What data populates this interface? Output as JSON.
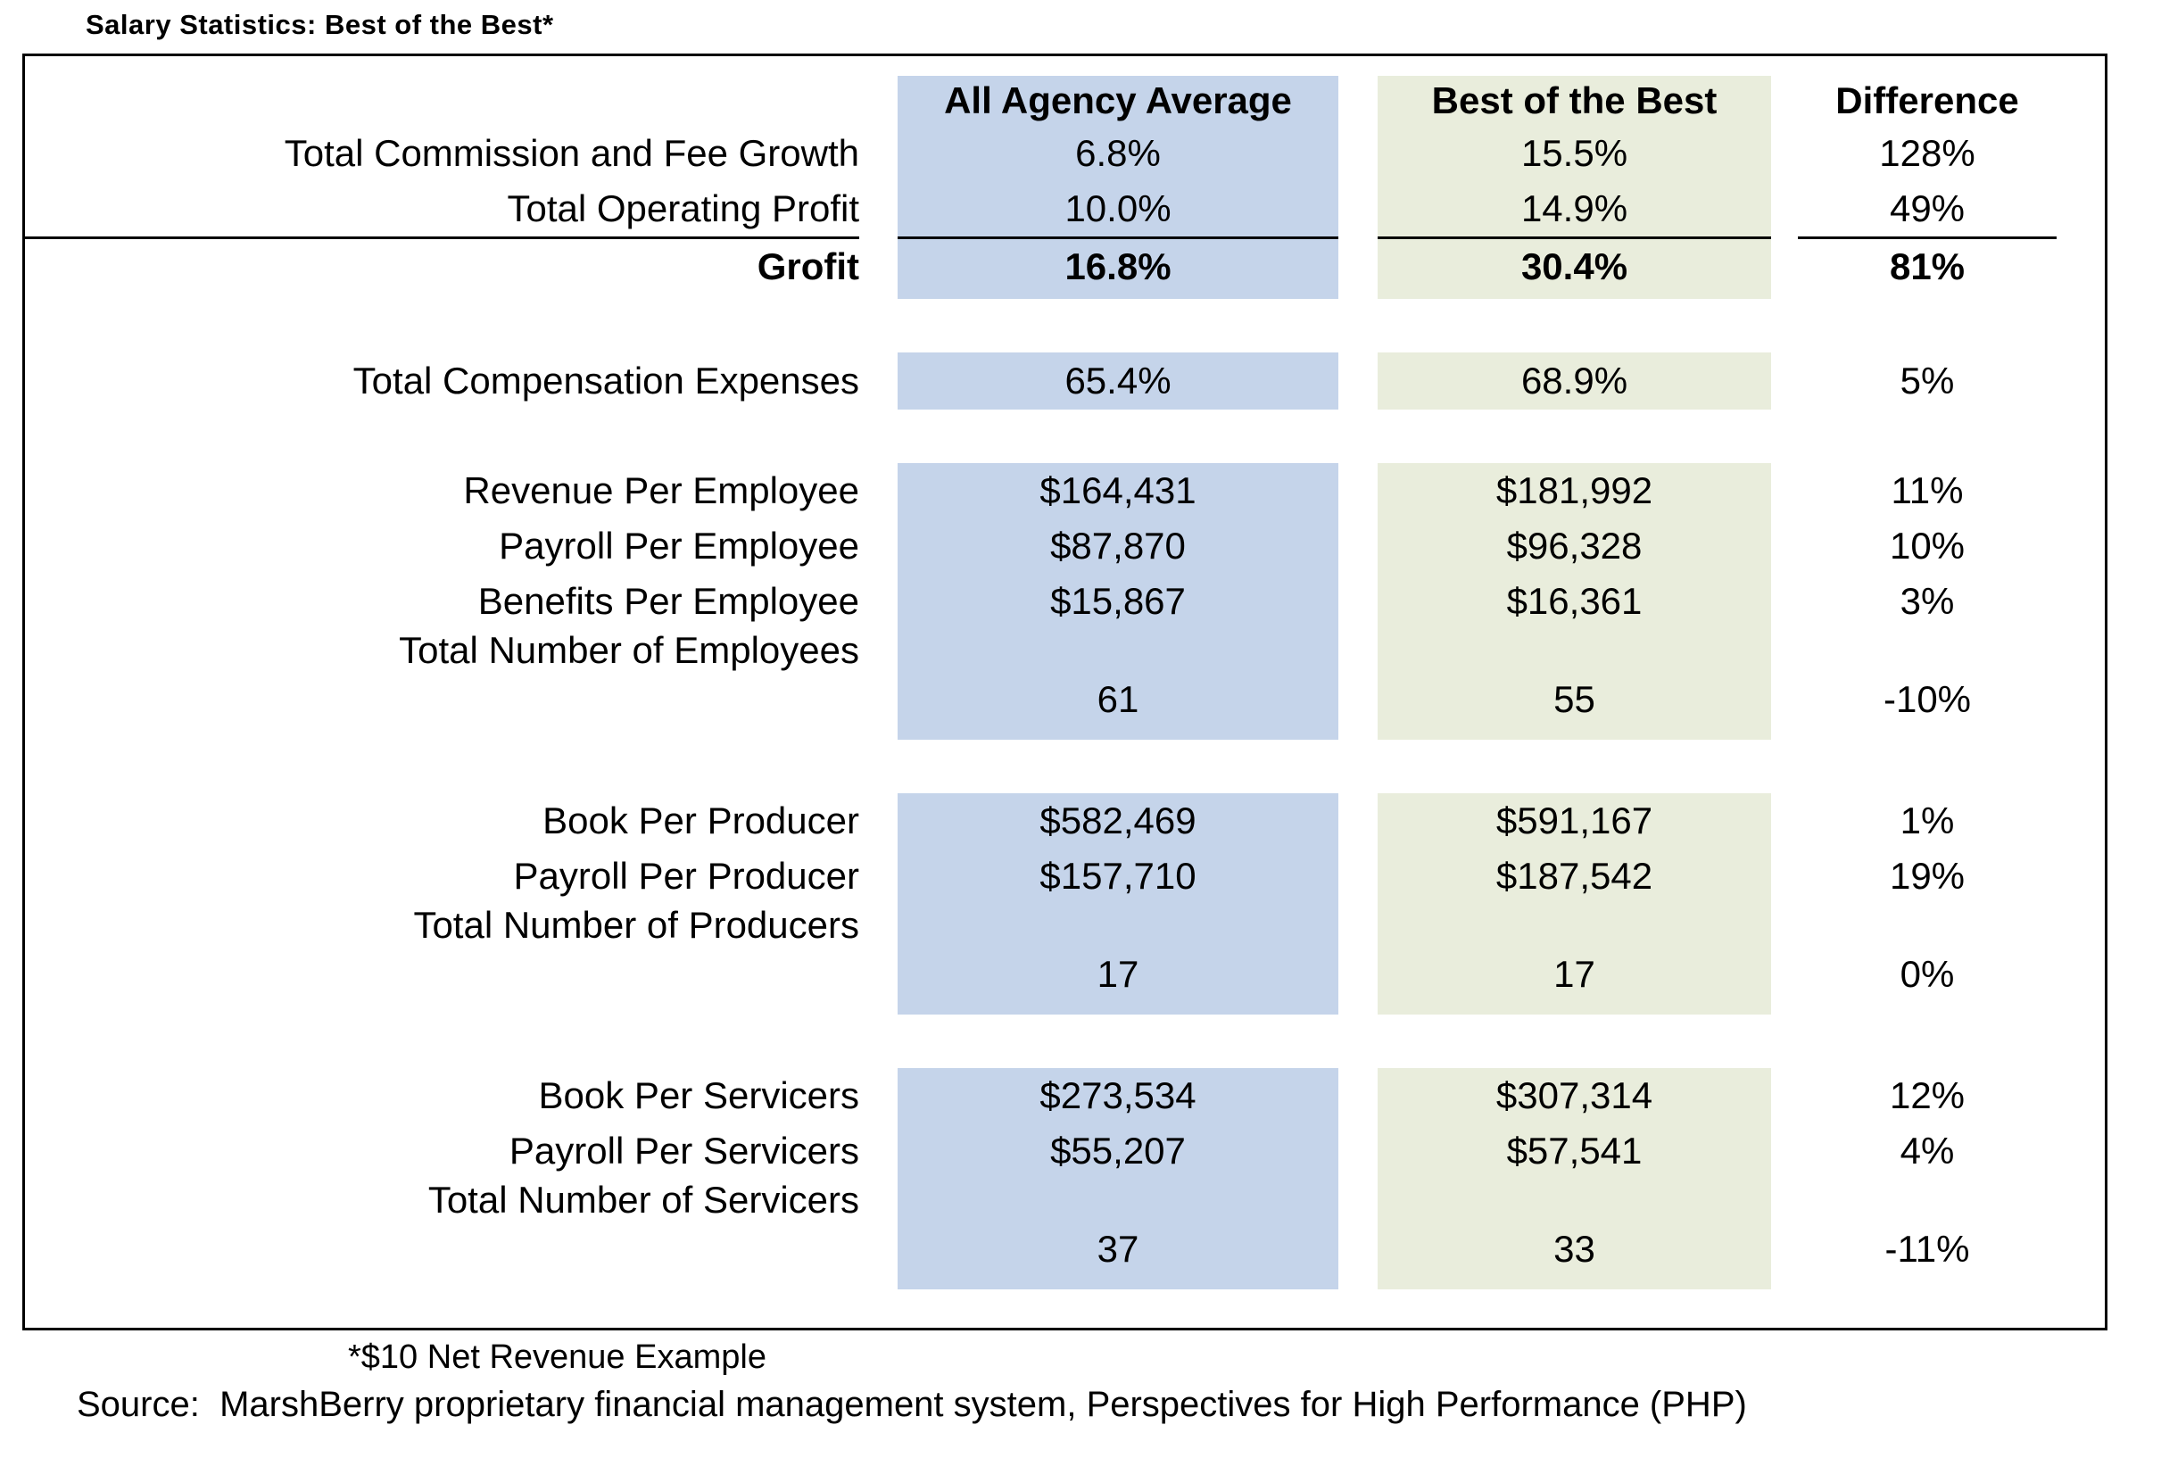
{
  "title": "Salary Statistics: Best of the Best*",
  "header": {
    "all_agency": "All Agency Average",
    "best": "Best of the Best",
    "difference": "Difference"
  },
  "sections": {
    "growth": {
      "rows": [
        {
          "label": "Total Commission and Fee Growth",
          "all_agency": "6.8%",
          "best": "15.5%",
          "difference": "128%"
        },
        {
          "label": "Total Operating Profit",
          "all_agency": "10.0%",
          "best": "14.9%",
          "difference": "49%"
        }
      ],
      "total": {
        "label": "Grofit",
        "all_agency": "16.8%",
        "best": "30.4%",
        "difference": "81%"
      }
    },
    "compensation": {
      "label": "Total Compensation Expenses",
      "all_agency": "65.4%",
      "best": "68.9%",
      "difference": "5%"
    },
    "employees": {
      "rows": [
        {
          "label": "Revenue Per Employee",
          "all_agency": "$164,431",
          "best": "$181,992",
          "difference": "11%"
        },
        {
          "label": "Payroll Per Employee",
          "all_agency": "$87,870",
          "best": "$96,328",
          "difference": "10%"
        },
        {
          "label": "Benefits Per Employee",
          "all_agency": "$15,867",
          "best": "$16,361",
          "difference": "3%"
        }
      ],
      "count": {
        "label": "Total Number of Employees",
        "all_agency": "61",
        "best": "55",
        "difference": "-10%"
      }
    },
    "producers": {
      "rows": [
        {
          "label": "Book Per Producer",
          "all_agency": "$582,469",
          "best": "$591,167",
          "difference": "1%"
        },
        {
          "label": "Payroll Per Producer",
          "all_agency": "$157,710",
          "best": "$187,542",
          "difference": "19%"
        }
      ],
      "count": {
        "label": "Total Number of Producers",
        "all_agency": "17",
        "best": "17",
        "difference": "0%"
      }
    },
    "servicers": {
      "rows": [
        {
          "label": "Book Per Servicers",
          "all_agency": "$273,534",
          "best": "$307,314",
          "difference": "12%"
        },
        {
          "label": "Payroll Per Servicers",
          "all_agency": "$55,207",
          "best": "$57,541",
          "difference": "4%"
        }
      ],
      "count": {
        "label": "Total Number of Servicers",
        "all_agency": "37",
        "best": "33",
        "difference": "-11%"
      }
    }
  },
  "footnote": "*$10 Net Revenue Example",
  "source": "Source:  MarshBerry proprietary financial management system, Perspectives for High Performance (PHP)",
  "colors": {
    "all_agency_bg": "#C5D4EA",
    "best_bg": "#E9EDDC",
    "text": "#000000",
    "border": "#000000"
  }
}
